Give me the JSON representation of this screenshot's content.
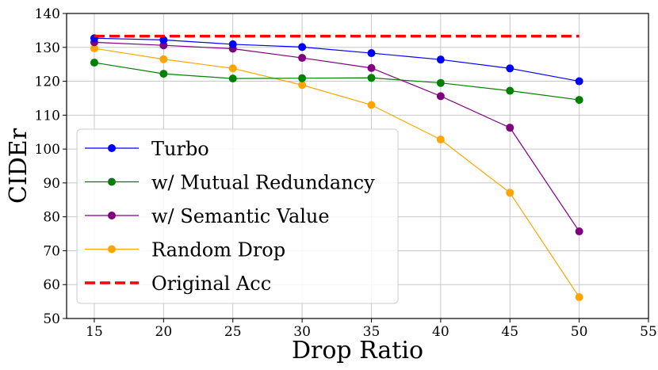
{
  "chart_data": {
    "type": "line",
    "title": "",
    "xlabel": "Drop Ratio",
    "ylabel": "CIDEr",
    "x": [
      15,
      20,
      25,
      30,
      35,
      40,
      45,
      50
    ],
    "xlim": [
      13,
      55
    ],
    "ylim": [
      50,
      140
    ],
    "xticks": [
      "15",
      "20",
      "25",
      "30",
      "35",
      "40",
      "45",
      "50",
      "55"
    ],
    "yticks": [
      "50",
      "60",
      "70",
      "80",
      "90",
      "100",
      "110",
      "120",
      "130",
      "140"
    ],
    "grid": true,
    "legend_position": "lower-left",
    "series": [
      {
        "name": "Turbo",
        "color": "#0000ff",
        "style": "solid-marker",
        "values": [
          132.7,
          132.2,
          130.9,
          130.1,
          128.3,
          126.4,
          123.8,
          120.0
        ]
      },
      {
        "name": "w/ Mutual Redundancy",
        "color": "#008000",
        "style": "solid-marker",
        "values": [
          125.5,
          122.2,
          120.8,
          120.9,
          121.0,
          119.5,
          117.2,
          114.5
        ]
      },
      {
        "name": "w/ Semantic Value",
        "color": "#800080",
        "style": "solid-marker",
        "values": [
          131.5,
          130.6,
          129.6,
          126.9,
          123.9,
          115.6,
          106.3,
          75.7
        ]
      },
      {
        "name": "Random Drop",
        "color": "#ffa500",
        "style": "solid-marker",
        "values": [
          129.7,
          126.5,
          123.8,
          118.9,
          113.0,
          102.8,
          87.1,
          56.3
        ]
      },
      {
        "name": "Original Acc",
        "color": "#ff0000",
        "style": "dashed",
        "values": [
          133.3,
          133.3,
          133.3,
          133.3,
          133.3,
          133.3,
          133.3,
          133.3
        ]
      }
    ]
  }
}
